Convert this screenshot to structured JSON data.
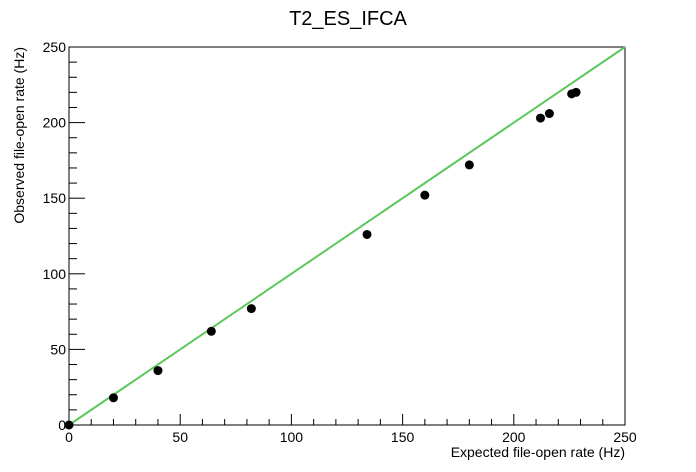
{
  "chart_data": {
    "type": "scatter",
    "title": "T2_ES_IFCA",
    "xlabel": "Expected file-open rate (Hz)",
    "ylabel": "Observed file-open rate (Hz)",
    "xlim": [
      0,
      250
    ],
    "ylim": [
      0,
      250
    ],
    "xticks": [
      0,
      50,
      100,
      150,
      200,
      250
    ],
    "yticks": [
      0,
      50,
      100,
      150,
      200,
      250
    ],
    "grid": false,
    "points": [
      {
        "x": 0,
        "y": 0
      },
      {
        "x": 20,
        "y": 18
      },
      {
        "x": 40,
        "y": 36
      },
      {
        "x": 64,
        "y": 62
      },
      {
        "x": 82,
        "y": 77
      },
      {
        "x": 134,
        "y": 126
      },
      {
        "x": 160,
        "y": 152
      },
      {
        "x": 180,
        "y": 172
      },
      {
        "x": 212,
        "y": 203
      },
      {
        "x": 216,
        "y": 206
      },
      {
        "x": 226,
        "y": 219
      },
      {
        "x": 228,
        "y": 220
      }
    ],
    "reference_line": {
      "x": [
        0,
        250
      ],
      "y": [
        0,
        250
      ],
      "color": "#5cc85c"
    },
    "point_color": "#000000"
  }
}
